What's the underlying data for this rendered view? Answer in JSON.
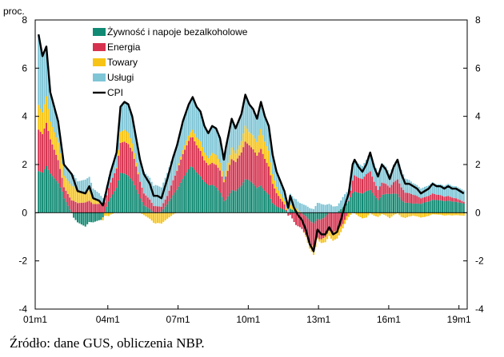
{
  "chart_data": {
    "type": "stacked-bar-line",
    "ylabel": "proc.",
    "ylim": [
      -4,
      8
    ],
    "yticks": [
      -4,
      -2,
      0,
      2,
      4,
      6,
      8
    ],
    "xticks": [
      "01m1",
      "04m1",
      "07m1",
      "10m1",
      "13m1",
      "16m1",
      "19m1"
    ],
    "start": "2001-01",
    "months": 219,
    "colors": {
      "food": "#118A73",
      "energy": "#D6324F",
      "goods": "#F7C415",
      "services": "#7EC5D6",
      "cpi": "#000000"
    },
    "legend": [
      {
        "key": "food",
        "label": "Żywność i napoje bezalkoholowe"
      },
      {
        "key": "energy",
        "label": "Energia"
      },
      {
        "key": "goods",
        "label": "Towary"
      },
      {
        "key": "services",
        "label": "Usługi"
      },
      {
        "key": "cpi",
        "label": "CPI"
      }
    ],
    "source": "Źródło: dane GUS, obliczenia NBP.",
    "anchors": {
      "cpi": [
        [
          0,
          7.4
        ],
        [
          2,
          6.5
        ],
        [
          4,
          6.9
        ],
        [
          6,
          5.0
        ],
        [
          10,
          3.8
        ],
        [
          13,
          2.0
        ],
        [
          17,
          1.6
        ],
        [
          20,
          0.9
        ],
        [
          24,
          0.8
        ],
        [
          26,
          1.1
        ],
        [
          28,
          0.6
        ],
        [
          31,
          0.5
        ],
        [
          33,
          0.3
        ],
        [
          35,
          1.0
        ],
        [
          37,
          1.7
        ],
        [
          40,
          2.5
        ],
        [
          42,
          4.4
        ],
        [
          44,
          4.6
        ],
        [
          46,
          4.5
        ],
        [
          48,
          4.0
        ],
        [
          50,
          3.1
        ],
        [
          52,
          2.2
        ],
        [
          54,
          1.6
        ],
        [
          57,
          1.2
        ],
        [
          59,
          0.7
        ],
        [
          61,
          0.7
        ],
        [
          63,
          0.6
        ],
        [
          66,
          1.4
        ],
        [
          69,
          2.3
        ],
        [
          71,
          2.8
        ],
        [
          74,
          3.8
        ],
        [
          77,
          4.5
        ],
        [
          79,
          4.8
        ],
        [
          81,
          4.4
        ],
        [
          83,
          4.2
        ],
        [
          85,
          3.6
        ],
        [
          87,
          3.3
        ],
        [
          89,
          3.6
        ],
        [
          91,
          3.5
        ],
        [
          93,
          3.1
        ],
        [
          95,
          2.2
        ],
        [
          96,
          2.7
        ],
        [
          99,
          3.9
        ],
        [
          101,
          3.5
        ],
        [
          104,
          4.1
        ],
        [
          106,
          4.9
        ],
        [
          108,
          4.5
        ],
        [
          110,
          4.3
        ],
        [
          112,
          3.9
        ],
        [
          114,
          4.6
        ],
        [
          116,
          4.0
        ],
        [
          118,
          3.6
        ],
        [
          120,
          2.4
        ],
        [
          122,
          1.7
        ],
        [
          124,
          1.3
        ],
        [
          126,
          0.9
        ],
        [
          128,
          0.2
        ],
        [
          129,
          0.7
        ],
        [
          131,
          0.2
        ],
        [
          133,
          -0.1
        ],
        [
          135,
          -0.3
        ],
        [
          137,
          -0.7
        ],
        [
          139,
          -1.3
        ],
        [
          141,
          -1.6
        ],
        [
          143,
          -0.7
        ],
        [
          145,
          -0.9
        ],
        [
          147,
          -0.9
        ],
        [
          149,
          -0.6
        ],
        [
          151,
          -0.9
        ],
        [
          153,
          -0.8
        ],
        [
          155,
          -0.3
        ],
        [
          157,
          0.3
        ],
        [
          159,
          0.8
        ],
        [
          161,
          2.0
        ],
        [
          162,
          2.2
        ],
        [
          164,
          1.9
        ],
        [
          166,
          1.7
        ],
        [
          168,
          2.0
        ],
        [
          170,
          2.5
        ],
        [
          172,
          1.9
        ],
        [
          174,
          1.5
        ],
        [
          176,
          2.0
        ],
        [
          178,
          1.8
        ],
        [
          180,
          1.4
        ],
        [
          182,
          1.9
        ],
        [
          184,
          2.2
        ],
        [
          186,
          1.6
        ],
        [
          188,
          1.2
        ],
        [
          190,
          1.2
        ],
        [
          192,
          1.1
        ],
        [
          194,
          1.0
        ],
        [
          196,
          0.8
        ],
        [
          198,
          0.9
        ],
        [
          200,
          1.0
        ],
        [
          202,
          1.2
        ],
        [
          204,
          1.1
        ],
        [
          206,
          1.1
        ],
        [
          208,
          1.0
        ],
        [
          210,
          1.1
        ],
        [
          212,
          1.0
        ],
        [
          214,
          1.0
        ],
        [
          216,
          0.9
        ],
        [
          218,
          0.8
        ]
      ],
      "food": [
        [
          0,
          1.7
        ],
        [
          6,
          1.8
        ],
        [
          12,
          0.9
        ],
        [
          18,
          -0.3
        ],
        [
          24,
          -0.8
        ],
        [
          28,
          -0.5
        ],
        [
          32,
          -0.3
        ],
        [
          36,
          0.4
        ],
        [
          42,
          1.3
        ],
        [
          48,
          0.8
        ],
        [
          54,
          0.1
        ],
        [
          60,
          -0.1
        ],
        [
          66,
          0.3
        ],
        [
          72,
          1.0
        ],
        [
          78,
          1.9
        ],
        [
          84,
          1.4
        ],
        [
          90,
          1.2
        ],
        [
          96,
          0.6
        ],
        [
          102,
          1.0
        ],
        [
          108,
          1.4
        ],
        [
          114,
          1.0
        ],
        [
          120,
          0.4
        ],
        [
          126,
          0.2
        ],
        [
          132,
          0.1
        ],
        [
          138,
          -0.2
        ],
        [
          144,
          -0.5
        ],
        [
          150,
          0.0
        ],
        [
          156,
          0.2
        ],
        [
          162,
          0.8
        ],
        [
          168,
          0.9
        ],
        [
          174,
          0.5
        ],
        [
          180,
          0.8
        ],
        [
          186,
          0.5
        ],
        [
          192,
          0.4
        ],
        [
          198,
          0.5
        ],
        [
          204,
          0.6
        ],
        [
          210,
          0.6
        ],
        [
          218,
          0.5
        ]
      ],
      "energy": [
        [
          0,
          1.7
        ],
        [
          6,
          1.6
        ],
        [
          12,
          0.6
        ],
        [
          18,
          0.4
        ],
        [
          24,
          0.2
        ],
        [
          30,
          0.3
        ],
        [
          36,
          0.5
        ],
        [
          42,
          0.9
        ],
        [
          48,
          0.7
        ],
        [
          54,
          0.3
        ],
        [
          60,
          0.2
        ],
        [
          66,
          0.3
        ],
        [
          72,
          0.8
        ],
        [
          78,
          1.2
        ],
        [
          84,
          1.0
        ],
        [
          90,
          1.0
        ],
        [
          96,
          1.0
        ],
        [
          102,
          1.3
        ],
        [
          108,
          1.5
        ],
        [
          114,
          1.4
        ],
        [
          120,
          0.8
        ],
        [
          126,
          0.3
        ],
        [
          132,
          -0.5
        ],
        [
          138,
          -0.8
        ],
        [
          144,
          -1.0
        ],
        [
          150,
          -0.8
        ],
        [
          156,
          -0.5
        ],
        [
          162,
          0.6
        ],
        [
          168,
          0.7
        ],
        [
          174,
          0.4
        ],
        [
          180,
          0.3
        ],
        [
          186,
          0.5
        ],
        [
          192,
          0.4
        ],
        [
          198,
          0.3
        ],
        [
          204,
          0.3
        ],
        [
          210,
          0.3
        ],
        [
          218,
          0.2
        ]
      ],
      "goods": [
        [
          0,
          1.0
        ],
        [
          6,
          0.9
        ],
        [
          12,
          0.6
        ],
        [
          18,
          0.5
        ],
        [
          24,
          0.2
        ],
        [
          30,
          0.1
        ],
        [
          36,
          -0.2
        ],
        [
          42,
          0.1
        ],
        [
          48,
          -0.2
        ],
        [
          54,
          -0.3
        ],
        [
          60,
          -0.5
        ],
        [
          66,
          -0.3
        ],
        [
          72,
          0.0
        ],
        [
          78,
          0.2
        ],
        [
          84,
          0.4
        ],
        [
          90,
          0.5
        ],
        [
          96,
          0.3
        ],
        [
          102,
          0.4
        ],
        [
          108,
          0.6
        ],
        [
          114,
          0.7
        ],
        [
          120,
          0.4
        ],
        [
          126,
          0.2
        ],
        [
          132,
          0.1
        ],
        [
          138,
          -0.1
        ],
        [
          144,
          -0.3
        ],
        [
          150,
          -0.3
        ],
        [
          156,
          -0.2
        ],
        [
          162,
          -0.1
        ],
        [
          168,
          -0.2
        ],
        [
          174,
          -0.2
        ],
        [
          180,
          -0.2
        ],
        [
          186,
          -0.2
        ],
        [
          192,
          -0.1
        ],
        [
          198,
          -0.1
        ],
        [
          204,
          0.0
        ],
        [
          210,
          0.0
        ],
        [
          218,
          0.0
        ]
      ],
      "services": [
        [
          0,
          2.9
        ],
        [
          6,
          1.4
        ],
        [
          12,
          0.6
        ],
        [
          18,
          0.4
        ],
        [
          24,
          0.3
        ],
        [
          30,
          0.3
        ],
        [
          36,
          0.4
        ],
        [
          42,
          0.7
        ],
        [
          48,
          0.6
        ],
        [
          54,
          0.7
        ],
        [
          60,
          0.8
        ],
        [
          66,
          0.9
        ],
        [
          72,
          1.0
        ],
        [
          78,
          1.3
        ],
        [
          84,
          1.2
        ],
        [
          90,
          1.2
        ],
        [
          96,
          1.0
        ],
        [
          102,
          1.1
        ],
        [
          108,
          1.2
        ],
        [
          114,
          1.0
        ],
        [
          120,
          0.8
        ],
        [
          126,
          0.5
        ],
        [
          132,
          0.4
        ],
        [
          138,
          0.3
        ],
        [
          144,
          0.2
        ],
        [
          150,
          0.3
        ],
        [
          156,
          0.4
        ],
        [
          162,
          0.6
        ],
        [
          168,
          0.6
        ],
        [
          174,
          0.7
        ],
        [
          180,
          0.6
        ],
        [
          186,
          0.7
        ],
        [
          192,
          0.5
        ],
        [
          198,
          0.5
        ],
        [
          204,
          0.5
        ],
        [
          210,
          0.6
        ],
        [
          218,
          0.6
        ]
      ]
    }
  }
}
